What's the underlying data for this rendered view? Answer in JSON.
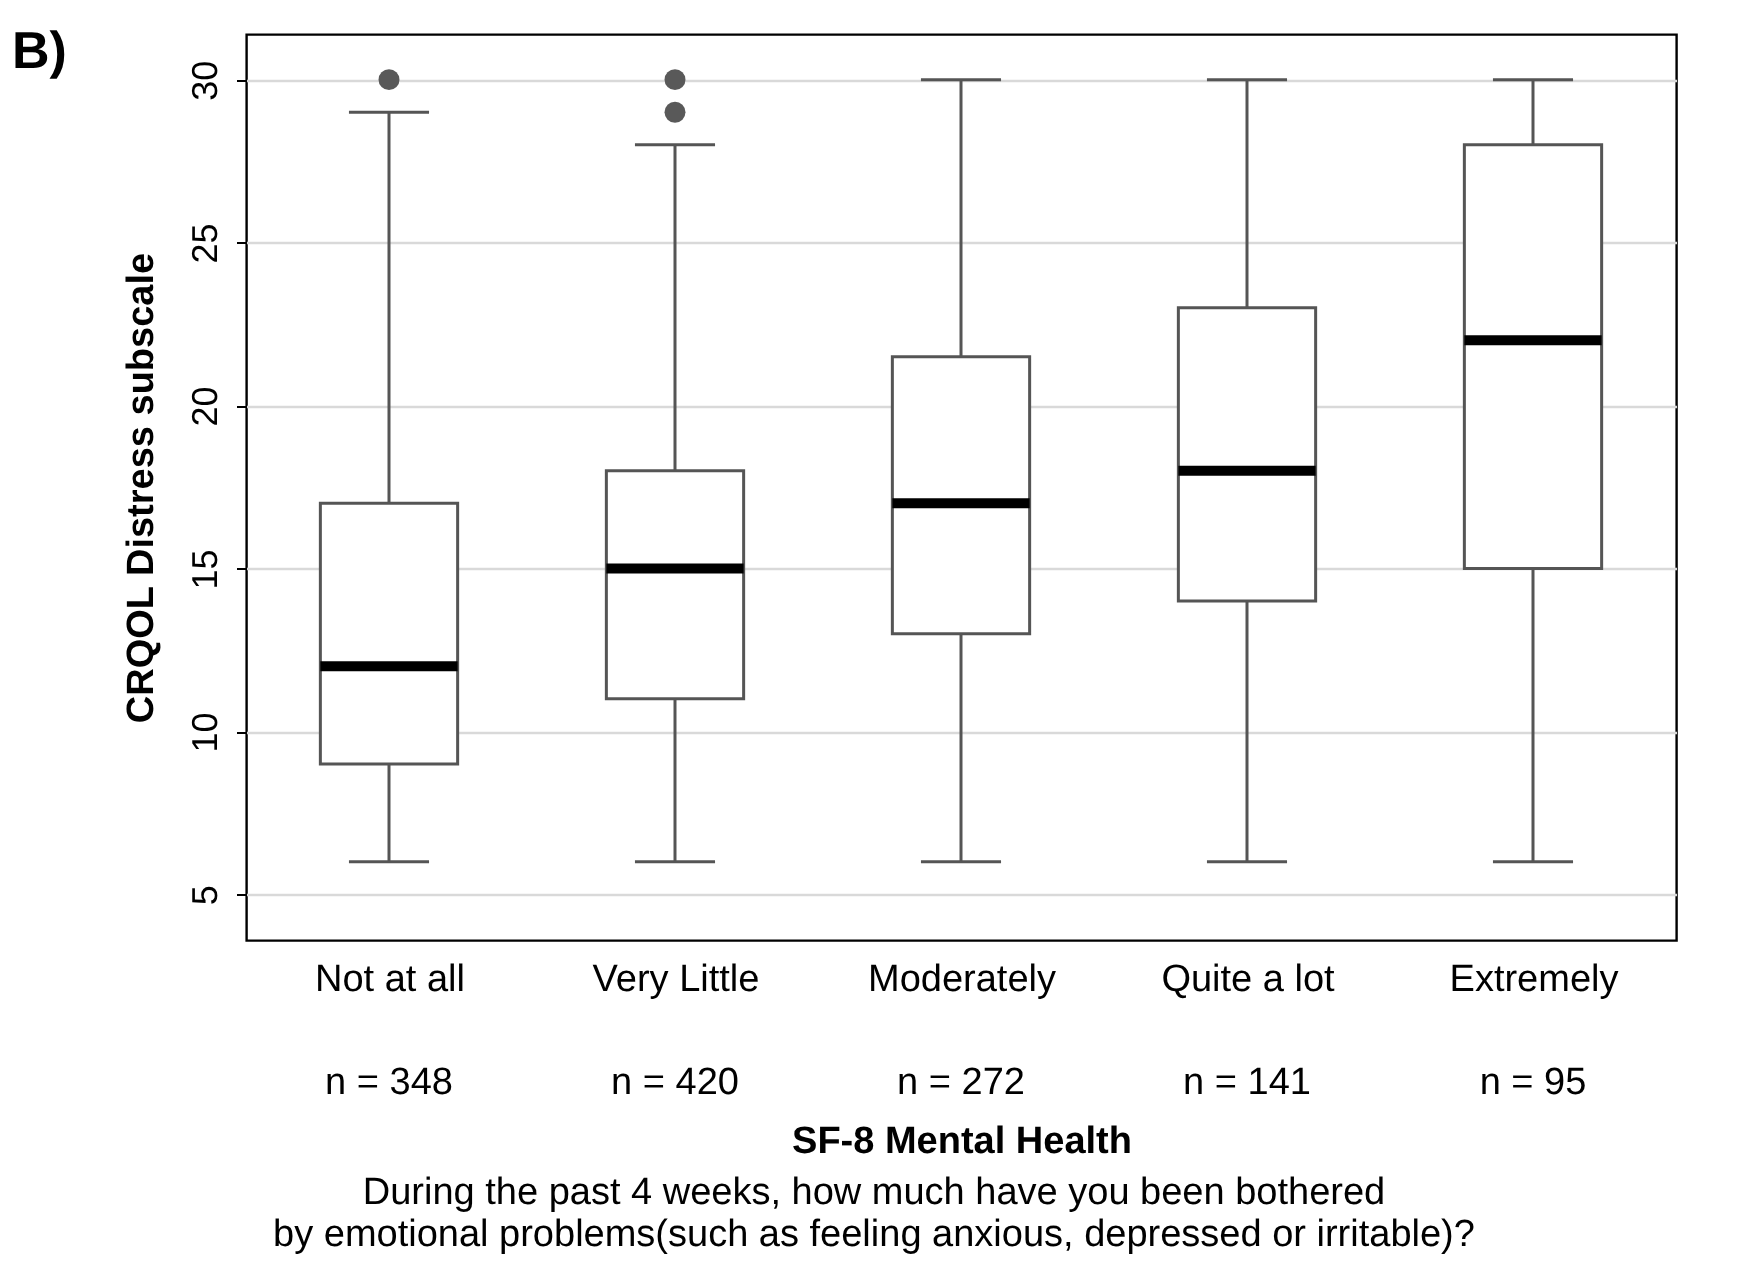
{
  "chart_data": {
    "type": "box",
    "title": "B)",
    "ylabel": "CRQOL Distress subscale",
    "xlabel": "SF-8 Mental Health",
    "categories": [
      "Not at all",
      "Very Little",
      "Moderately",
      "Quite a lot",
      "Extremely"
    ],
    "boxes": [
      {
        "low": 6,
        "q1": 9,
        "median": 12,
        "q3": 17,
        "high": 29,
        "outliers": [
          30
        ]
      },
      {
        "low": 6,
        "q1": 11,
        "median": 15,
        "q3": 18,
        "high": 28,
        "outliers": [
          29,
          30
        ]
      },
      {
        "low": 6,
        "q1": 13,
        "median": 17,
        "q3": 21.5,
        "high": 30
      },
      {
        "low": 6,
        "q1": 14,
        "median": 18,
        "q3": 23,
        "high": 30
      },
      {
        "low": 6,
        "q1": 15,
        "median": 22,
        "q3": 28,
        "high": 30
      }
    ],
    "ylim": [
      3.6,
      31.4
    ],
    "yticks": [
      5,
      10,
      15,
      20,
      25,
      30
    ],
    "grid": "y",
    "annotations": [
      "n = 348",
      "n = 420",
      "n = 272",
      "n = 141",
      "n = 95",
      "During the past 4 weeks, how much have you been bothered",
      "by emotional problems(such as feeling anxious, depressed or irritable)?"
    ]
  }
}
